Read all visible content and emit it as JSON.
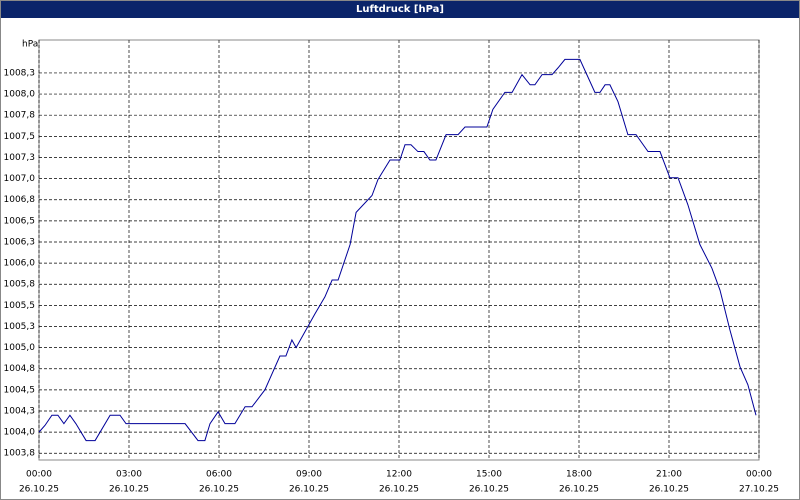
{
  "chart_data": {
    "type": "line",
    "title": "Luftdruck [hPa]",
    "y_label": "hPa",
    "x": [
      0,
      0.2,
      0.43,
      0.63,
      0.83,
      1.03,
      1.23,
      1.57,
      1.87,
      2.37,
      2.7,
      2.9,
      4.87,
      5.3,
      5.53,
      5.7,
      5.97,
      6.2,
      6.53,
      6.87,
      7.1,
      7.53,
      8.03,
      8.23,
      8.43,
      8.57,
      9.2,
      9.53,
      9.77,
      9.97,
      10.37,
      10.57,
      11.1,
      11.3,
      11.7,
      12.03,
      12.2,
      12.4,
      12.63,
      12.83,
      13.03,
      13.23,
      13.57,
      13.97,
      14.2,
      14.93,
      15.13,
      15.53,
      15.77,
      16.1,
      16.37,
      16.53,
      16.77,
      17.1,
      17.3,
      17.53,
      18.03,
      18.53,
      18.7,
      18.87,
      19.03,
      19.3,
      19.63,
      19.9,
      20.3,
      20.7,
      21.03,
      21.3,
      21.63,
      22.03,
      22.43,
      22.7,
      23.03,
      23.37,
      23.63,
      23.9
    ],
    "series": [
      {
        "name": "Luftdruck",
        "color": "#000099",
        "values": [
          1004.0,
          1004.08,
          1004.2,
          1004.2,
          1004.1,
          1004.2,
          1004.1,
          1003.9,
          1003.9,
          1004.2,
          1004.2,
          1004.1,
          1004.1,
          1003.9,
          1003.9,
          1004.1,
          1004.24,
          1004.1,
          1004.1,
          1004.3,
          1004.3,
          1004.5,
          1004.9,
          1004.9,
          1005.09,
          1005.0,
          1005.4,
          1005.6,
          1005.8,
          1005.8,
          1006.22,
          1006.6,
          1006.8,
          1006.99,
          1007.22,
          1007.22,
          1007.4,
          1007.4,
          1007.32,
          1007.32,
          1007.22,
          1007.22,
          1007.52,
          1007.52,
          1007.61,
          1007.61,
          1007.82,
          1008.02,
          1008.02,
          1008.23,
          1008.11,
          1008.11,
          1008.23,
          1008.23,
          1008.31,
          1008.41,
          1008.41,
          1008.02,
          1008.02,
          1008.11,
          1008.11,
          1007.91,
          1007.52,
          1007.52,
          1007.32,
          1007.32,
          1007.01,
          1007.01,
          1006.69,
          1006.22,
          1005.94,
          1005.68,
          1005.21,
          1004.77,
          1004.56,
          1004.2
        ]
      }
    ],
    "xlim": [
      0,
      24
    ],
    "xticks": [
      {
        "value": 0,
        "label": "00:00"
      },
      {
        "value": 3,
        "label": "03:00"
      },
      {
        "value": 6,
        "label": "06:00"
      },
      {
        "value": 9,
        "label": "09:00"
      },
      {
        "value": 12,
        "label": "12:00"
      },
      {
        "value": 15,
        "label": "15:00"
      },
      {
        "value": 18,
        "label": "18:00"
      },
      {
        "value": 21,
        "label": "21:00"
      },
      {
        "value": 24,
        "label": "00:00"
      }
    ],
    "xtick_dates": [
      "26.10.25",
      "26.10.25",
      "26.10.25",
      "26.10.25",
      "26.10.25",
      "26.10.25",
      "26.10.25",
      "26.10.25",
      "27.10.25"
    ],
    "ylim": [
      1003.67,
      1008.64
    ],
    "yticks": [
      {
        "value": 1003.75,
        "label": "1003,8"
      },
      {
        "value": 1004.0,
        "label": "1004,0"
      },
      {
        "value": 1004.25,
        "label": "1004,3"
      },
      {
        "value": 1004.5,
        "label": "1004,5"
      },
      {
        "value": 1004.75,
        "label": "1004,8"
      },
      {
        "value": 1005.0,
        "label": "1005,0"
      },
      {
        "value": 1005.25,
        "label": "1005,3"
      },
      {
        "value": 1005.5,
        "label": "1005,5"
      },
      {
        "value": 1005.75,
        "label": "1005,8"
      },
      {
        "value": 1006.0,
        "label": "1006,0"
      },
      {
        "value": 1006.25,
        "label": "1006,3"
      },
      {
        "value": 1006.5,
        "label": "1006,5"
      },
      {
        "value": 1006.75,
        "label": "1006,8"
      },
      {
        "value": 1007.0,
        "label": "1007,0"
      },
      {
        "value": 1007.25,
        "label": "1007,3"
      },
      {
        "value": 1007.5,
        "label": "1007,5"
      },
      {
        "value": 1007.75,
        "label": "1007,8"
      },
      {
        "value": 1008.0,
        "label": "1008,0"
      },
      {
        "value": 1008.25,
        "label": "1008,3"
      }
    ],
    "grid": true
  }
}
